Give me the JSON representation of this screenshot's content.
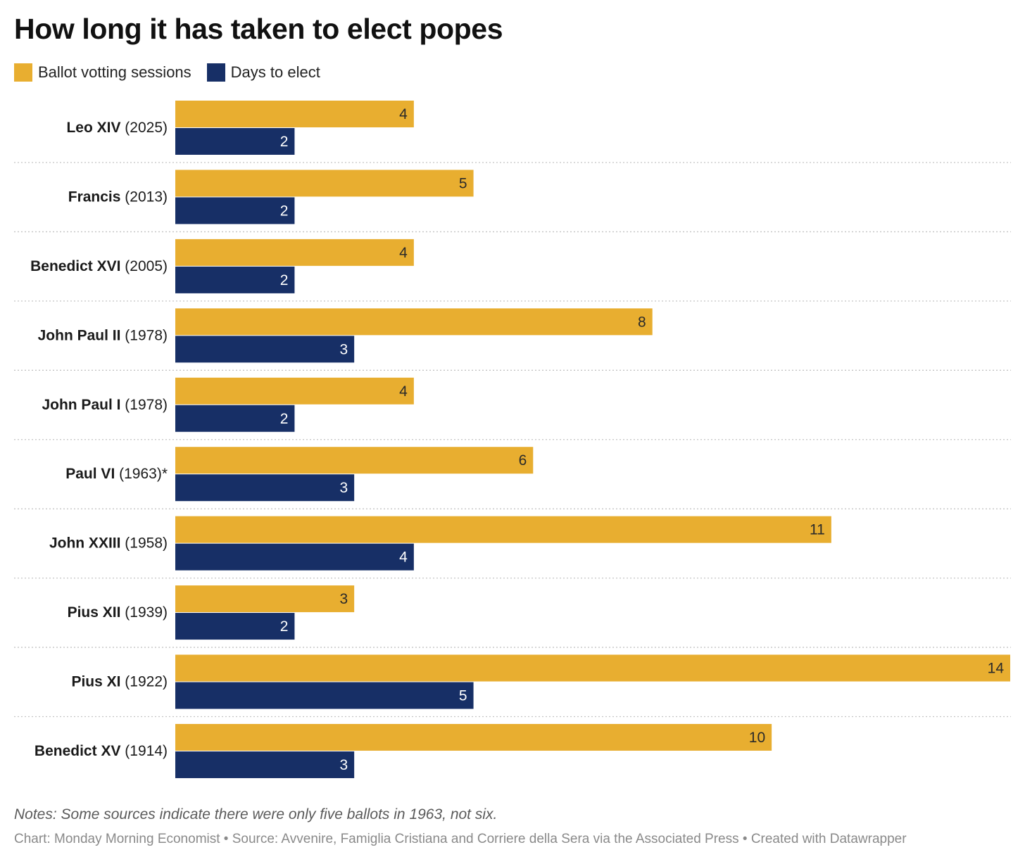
{
  "chart_data": {
    "type": "bar",
    "orientation": "horizontal",
    "title": "How long it has taken to elect popes",
    "legend_position": "top-left",
    "categories": [
      {
        "name": "Leo XIV",
        "year": "(2025)"
      },
      {
        "name": "Francis",
        "year": "(2013)"
      },
      {
        "name": "Benedict XVI",
        "year": "(2005)"
      },
      {
        "name": "John Paul II",
        "year": "(1978)"
      },
      {
        "name": "John Paul I",
        "year": "(1978)"
      },
      {
        "name": "Paul VI",
        "year": "(1963)*"
      },
      {
        "name": "John XXIII",
        "year": "(1958)"
      },
      {
        "name": "Pius XII",
        "year": "(1939)"
      },
      {
        "name": "Pius XI",
        "year": "(1922)"
      },
      {
        "name": "Benedict XV",
        "year": "(1914)"
      }
    ],
    "series": [
      {
        "name": "Ballot votting sessions",
        "color": "#e8ae30",
        "label_color": "#2a2a2a",
        "values": [
          4,
          5,
          4,
          8,
          4,
          6,
          11,
          3,
          14,
          10
        ]
      },
      {
        "name": "Days to elect",
        "color": "#172f66",
        "label_color": "#ffffff",
        "values": [
          2,
          2,
          2,
          3,
          2,
          3,
          4,
          2,
          5,
          3
        ]
      }
    ],
    "xlim": [
      0,
      14
    ],
    "grid": false,
    "notes": "Notes: Some sources indicate there were only five ballots in 1963, not six.",
    "credits": "Chart: Monday Morning Economist • Source: Avvenire, Famiglia Cristiana and Corriere della Sera via the Associated Press • Created with Datawrapper"
  }
}
